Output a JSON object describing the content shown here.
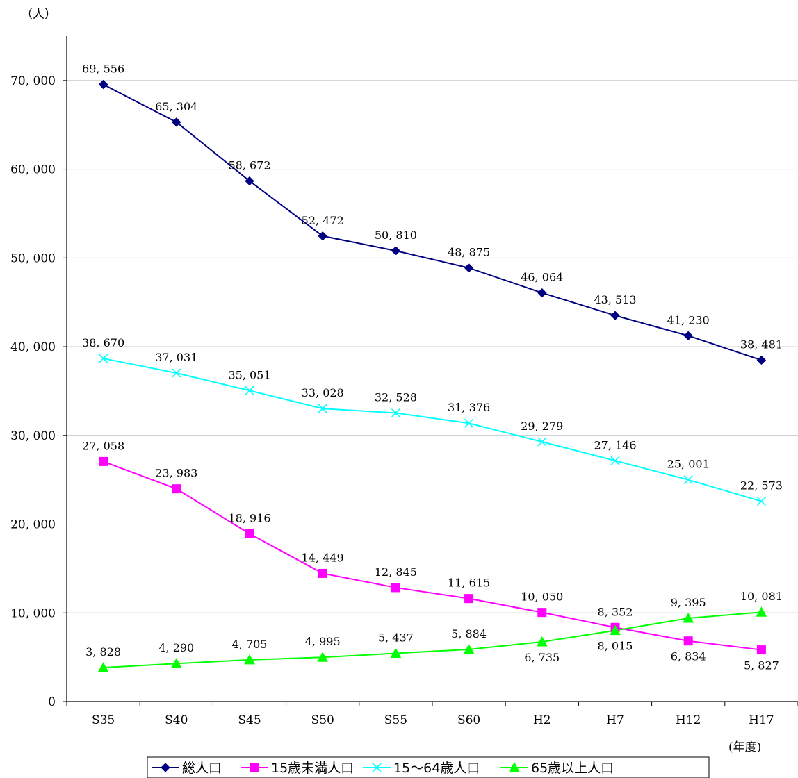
{
  "chart_data": {
    "type": "line",
    "y_unit_label": "（人）",
    "x_unit_label": "(年度)",
    "categories": [
      "S35",
      "S40",
      "S45",
      "S50",
      "S55",
      "S60",
      "H2",
      "H7",
      "H12",
      "H17"
    ],
    "ylim": [
      0,
      75000
    ],
    "yticks": [
      0,
      10000,
      20000,
      30000,
      40000,
      50000,
      60000,
      70000
    ],
    "ytick_labels": [
      "0",
      "10, 000",
      "20, 000",
      "30, 000",
      "40, 000",
      "50, 000",
      "60, 000",
      "70, 000"
    ],
    "grid": true,
    "legend_position": "bottom",
    "series": [
      {
        "name": "総人口",
        "color": "#000080",
        "marker": "diamond",
        "values": [
          69556,
          65304,
          58672,
          52472,
          50810,
          48875,
          46064,
          43513,
          41230,
          38481
        ],
        "labels": [
          "69, 556",
          "65, 304",
          "58, 672",
          "52, 472",
          "50, 810",
          "48, 875",
          "46, 064",
          "43, 513",
          "41, 230",
          "38, 481"
        ]
      },
      {
        "name": "15歳未満人口",
        "color": "#FF00FF",
        "marker": "square",
        "values": [
          27058,
          23983,
          18916,
          14449,
          12845,
          11615,
          10050,
          8352,
          6834,
          5827
        ],
        "labels": [
          "27, 058",
          "23, 983",
          "18, 916",
          "14, 449",
          "12, 845",
          "11, 615",
          "10, 050",
          "8, 352",
          "6, 834",
          "5, 827"
        ]
      },
      {
        "name": "15～64歳人口",
        "color": "#00FFFF",
        "marker": "x",
        "values": [
          38670,
          37031,
          35051,
          33028,
          32528,
          31376,
          29279,
          27146,
          25001,
          22573
        ],
        "labels": [
          "38, 670",
          "37, 031",
          "35, 051",
          "33, 028",
          "32, 528",
          "31, 376",
          "29, 279",
          "27, 146",
          "25, 001",
          "22, 573"
        ]
      },
      {
        "name": "65歳以上人口",
        "color": "#00FF00",
        "marker": "triangle",
        "values": [
          3828,
          4290,
          4705,
          4995,
          5437,
          5884,
          6735,
          8015,
          9395,
          10081
        ],
        "labels": [
          "3, 828",
          "4, 290",
          "4, 705",
          "4, 995",
          "5, 437",
          "5, 884",
          "6, 735",
          "8, 015",
          "9, 395",
          "10, 081"
        ]
      }
    ]
  }
}
